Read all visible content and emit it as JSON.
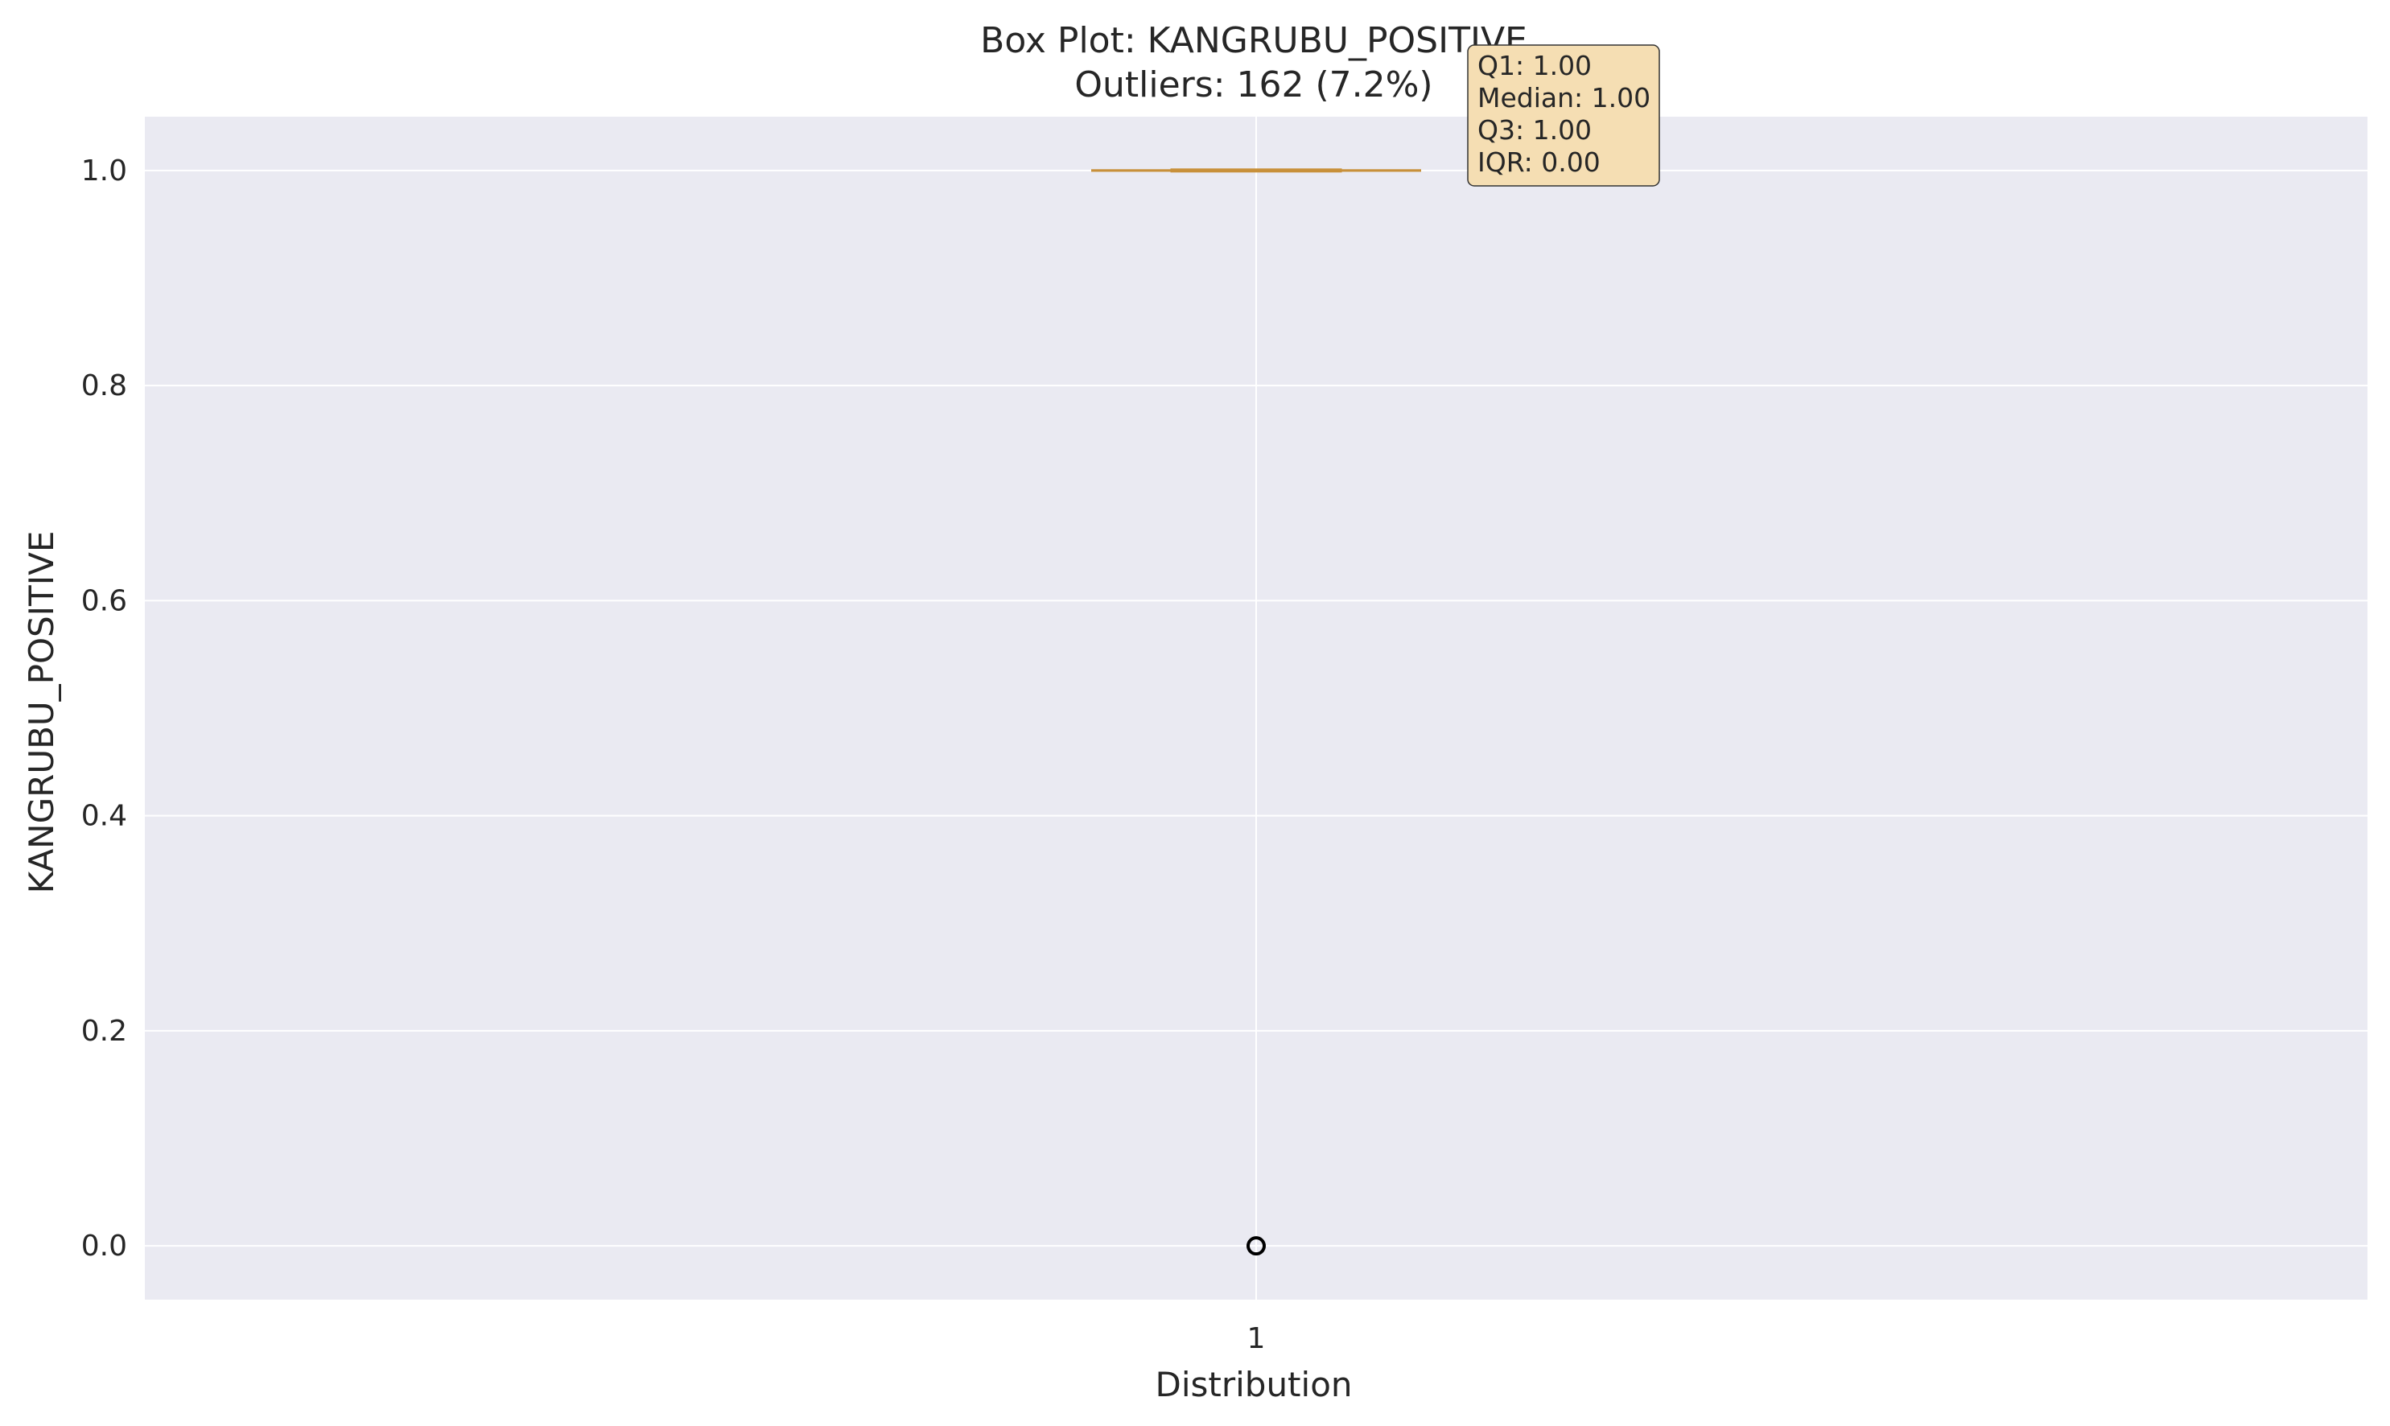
{
  "chart_data": {
    "type": "box",
    "title_line1": "Box Plot: KANGRUBU_POSITIVE",
    "title_line2": "Outliers: 162 (7.2%)",
    "xlabel": "Distribution",
    "ylabel": "KANGRUBU_POSITIVE",
    "categories": [
      "1"
    ],
    "ylim": [
      -0.05,
      1.05
    ],
    "yticks": [
      0.0,
      0.2,
      0.4,
      0.6,
      0.8,
      1.0
    ],
    "ytick_labels": [
      "0.0",
      "0.2",
      "0.4",
      "0.6",
      "0.8",
      "1.0"
    ],
    "grid": true,
    "box": {
      "q1": 1.0,
      "median": 1.0,
      "q3": 1.0,
      "whisker_low": 1.0,
      "whisker_high": 1.0,
      "outliers": [
        0.0
      ]
    },
    "stats_lines": [
      "Q1: 1.00",
      "Median: 1.00",
      "Q3: 1.00",
      "IQR: 0.00"
    ],
    "colors": {
      "plot_background": "#eaeaf2",
      "grid": "#ffffff",
      "box": "#c8903a",
      "outlier_edge": "#000000",
      "stats_box_fill": "#f5deb3"
    }
  }
}
